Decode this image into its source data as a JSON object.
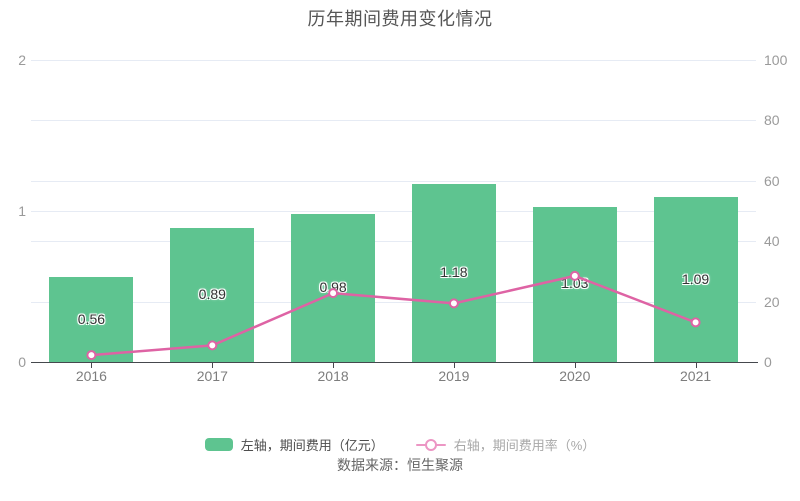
{
  "chart_data": {
    "type": "combo",
    "title": "历年期间费用变化情况",
    "categories": [
      "2016",
      "2017",
      "2018",
      "2019",
      "2020",
      "2021"
    ],
    "series": [
      {
        "name": "左轴，期间费用（亿元）",
        "type": "bar",
        "axis": "left",
        "color": "#5ec490",
        "values": [
          0.56,
          0.89,
          0.98,
          1.18,
          1.03,
          1.09
        ],
        "value_labels": [
          "0.56",
          "0.89",
          "0.98",
          "1.18",
          "1.03",
          "1.09"
        ]
      },
      {
        "name": "右轴，期间费用率（%）",
        "type": "line",
        "axis": "right",
        "color": "#de63a4",
        "estimated": true,
        "values": [
          2.3,
          5.5,
          22.8,
          19.4,
          28.5,
          13.1
        ]
      }
    ],
    "left_axis": {
      "min": 0,
      "max": 2,
      "ticks": [
        0,
        1,
        2
      ]
    },
    "right_axis": {
      "min": 0,
      "max": 100,
      "ticks": [
        0,
        20,
        40,
        60,
        80,
        100
      ]
    },
    "grid": true,
    "legend_position": "bottom"
  },
  "legend": {
    "items": [
      {
        "label": "左轴，期间费用（亿元）",
        "marker": "bar-swatch",
        "color": "#5ec490"
      },
      {
        "label": "右轴，期间费用率（%）",
        "marker": "line-dot",
        "color": "#ec96c4"
      }
    ]
  },
  "source": {
    "text": "数据来源：恒生聚源"
  },
  "colors": {
    "bar": "#5ec490",
    "line": "#de63a4",
    "gridline": "#e6ebf4",
    "axis_line": "#45484d",
    "y_axis_label": "#9a9a9a",
    "x_axis_label": "#7d7d7d",
    "bar_value_label": "#333333",
    "title_text": "#565656",
    "source_text": "#666666"
  }
}
